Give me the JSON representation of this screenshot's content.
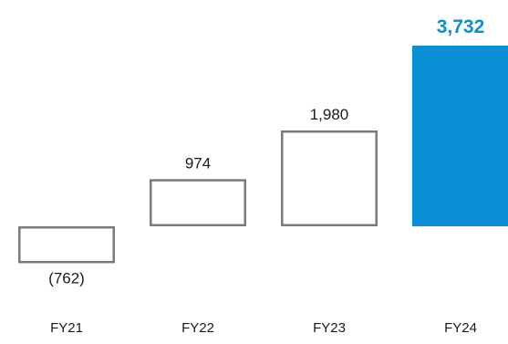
{
  "chart_data": {
    "type": "bar",
    "categories": [
      "FY21",
      "FY22",
      "FY23",
      "FY24"
    ],
    "values": [
      -762,
      974,
      1980,
      3732
    ],
    "data_labels": [
      "(762)",
      "974",
      "1,980",
      "3,732"
    ],
    "title": "",
    "xlabel": "",
    "ylabel": "",
    "ylim": [
      -762,
      3732
    ],
    "grid": false,
    "legend": "none",
    "colors": {
      "outline": "#7a7a7a",
      "highlight": "#0a8fd6",
      "label": "#1a1a1a",
      "highlight_label": "#0a8fd6"
    },
    "highlight_index": 3
  }
}
